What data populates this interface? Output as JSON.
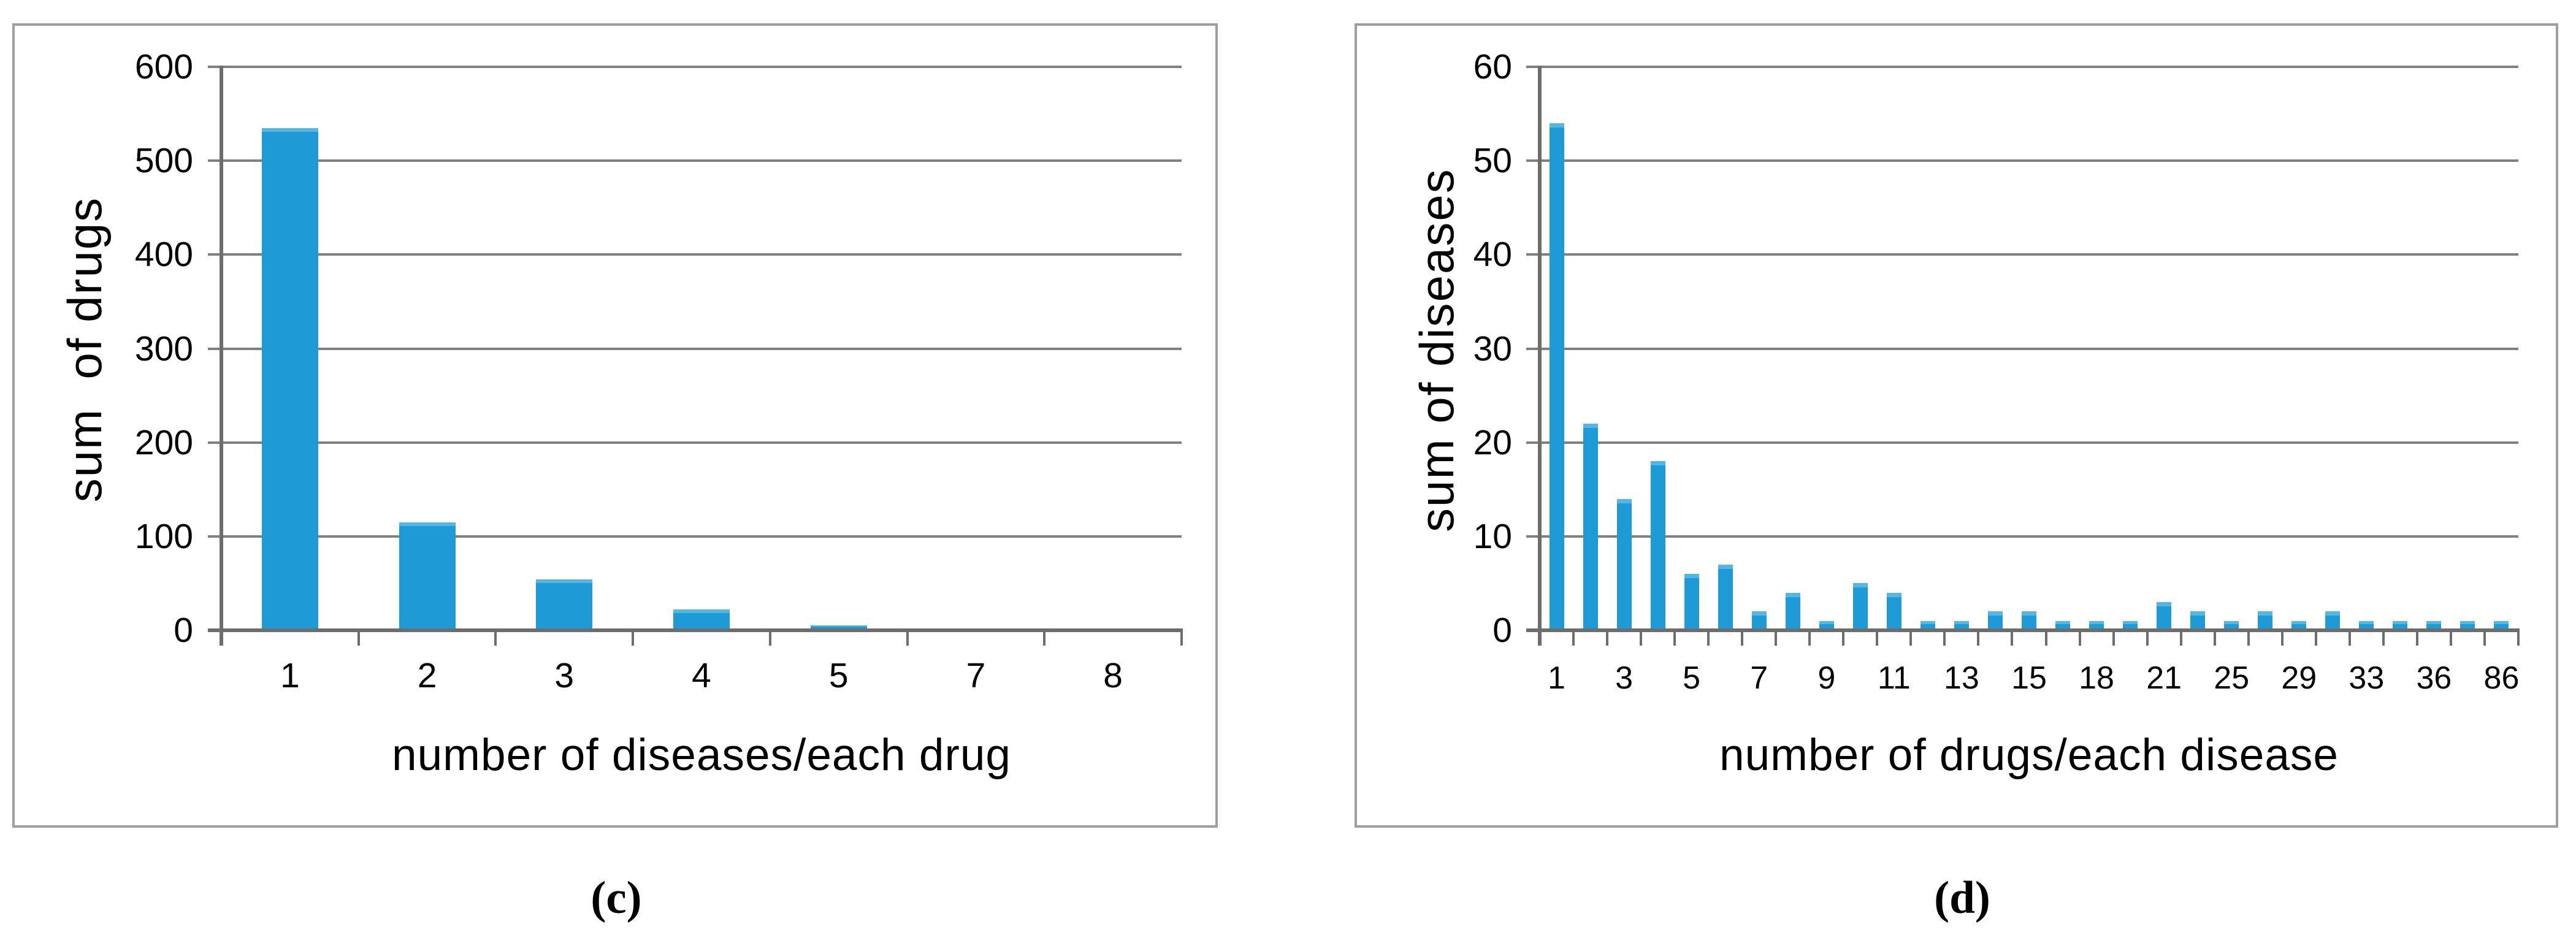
{
  "colors": {
    "background": "#ffffff",
    "bar": "#1e9bd7",
    "bar_top_highlight": "#55b5e4",
    "gridline": "#808080",
    "axis": "#6d6d6d",
    "panel_border": "#9e9e9e",
    "text": "#000000"
  },
  "chart_data": [
    {
      "type": "bar",
      "panel": "c",
      "caption": "(c)",
      "title": "",
      "xlabel": "number of diseases/each drug",
      "ylabel": "sum  of drugs",
      "categories": [
        "1",
        "2",
        "3",
        "4",
        "5",
        "7",
        "8"
      ],
      "values": [
        535,
        115,
        54,
        22,
        5,
        0,
        0
      ],
      "label_every": 1,
      "ylim": [
        0,
        600
      ],
      "yticks": [
        0,
        100,
        200,
        300,
        400,
        500,
        600
      ],
      "grid": true,
      "legend": false
    },
    {
      "type": "bar",
      "panel": "d",
      "caption": "(d)",
      "title": "",
      "xlabel": "number of drugs/each disease",
      "ylabel": "sum of diseases",
      "x_tick_labels": [
        "1",
        "3",
        "5",
        "7",
        "9",
        "11",
        "13",
        "15",
        "18",
        "21",
        "25",
        "29",
        "33",
        "36",
        "86"
      ],
      "label_every": 2,
      "values": [
        54,
        22,
        14,
        18,
        6,
        7,
        2,
        4,
        1,
        5,
        4,
        1,
        1,
        2,
        2,
        1,
        1,
        1,
        3,
        2,
        1,
        2,
        1,
        2,
        1,
        1,
        1,
        1,
        1
      ],
      "ylim": [
        0,
        60
      ],
      "yticks": [
        0,
        10,
        20,
        30,
        40,
        50,
        60
      ],
      "grid": true,
      "legend": false
    }
  ]
}
